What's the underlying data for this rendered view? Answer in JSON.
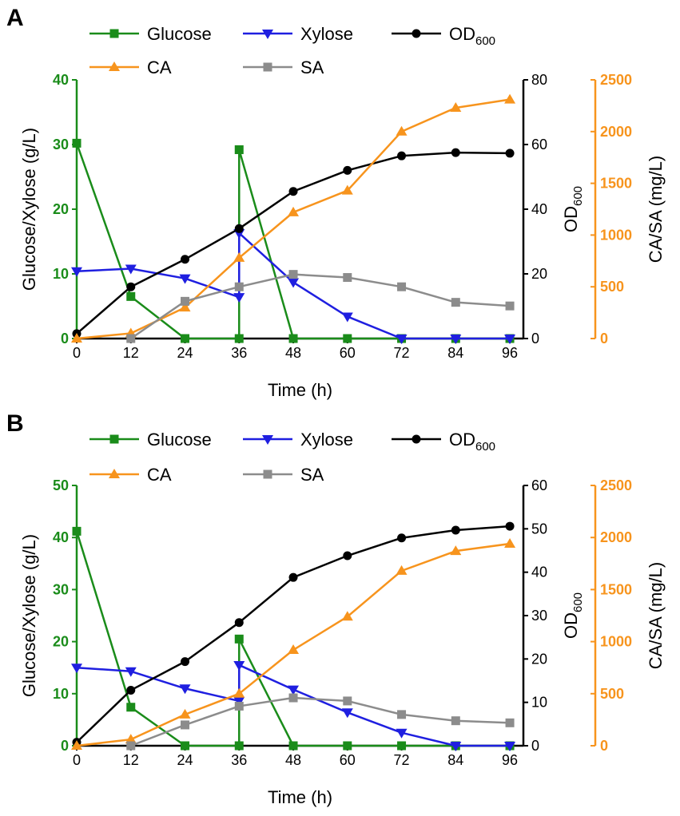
{
  "chart_data": [
    {
      "panel": "A",
      "type": "line",
      "xlabel": "Time (h)",
      "x_ticks": [
        "0",
        "12",
        "24",
        "36",
        "48",
        "60",
        "72",
        "84",
        "96"
      ],
      "xlim": [
        0,
        99
      ],
      "axes": {
        "left": {
          "label": "Glucose/Xylose (g/L)",
          "ylim": [
            0,
            40
          ],
          "ticks": [
            "0",
            "10",
            "20",
            "30",
            "40"
          ],
          "color": "#1a8c1a"
        },
        "right1": {
          "label_main": "OD",
          "label_sub": "600",
          "ylim": [
            0,
            80
          ],
          "ticks": [
            "0",
            "20",
            "40",
            "60",
            "80"
          ],
          "color": "#000000"
        },
        "right2": {
          "label": "CA/SA (mg/L)",
          "ylim": [
            0,
            2500
          ],
          "ticks": [
            "0",
            "500",
            "1000",
            "1500",
            "2000",
            "2500"
          ],
          "color": "#f7941d"
        }
      },
      "series": [
        {
          "name": "Glucose",
          "axis": "left",
          "marker": "square",
          "color": "#1a8c1a",
          "points": [
            [
              0,
              30.2
            ],
            [
              12,
              6.5
            ],
            [
              24,
              0
            ],
            [
              36,
              0
            ],
            [
              36,
              29.2
            ],
            [
              48,
              0
            ],
            [
              60,
              0
            ],
            [
              72,
              0
            ],
            [
              84,
              0
            ],
            [
              96,
              0
            ]
          ]
        },
        {
          "name": "Xylose",
          "axis": "left",
          "marker": "triangle-down",
          "color": "#1f1fe0",
          "points": [
            [
              0,
              10.4
            ],
            [
              12,
              10.8
            ],
            [
              24,
              9.3
            ],
            [
              36,
              6.4
            ],
            [
              36,
              16.3
            ],
            [
              48,
              8.7
            ],
            [
              60,
              3.4
            ],
            [
              72,
              0
            ],
            [
              84,
              0
            ],
            [
              96,
              0
            ]
          ]
        },
        {
          "name": "OD",
          "name_sub": "600",
          "axis": "right1",
          "marker": "circle",
          "color": "#000000",
          "points": [
            [
              0,
              1.5
            ],
            [
              12,
              16
            ],
            [
              24,
              24.5
            ],
            [
              36,
              34
            ],
            [
              48,
              45.5
            ],
            [
              60,
              52
            ],
            [
              72,
              56.5
            ],
            [
              84,
              57.5
            ],
            [
              96,
              57.3
            ]
          ]
        },
        {
          "name": "CA",
          "axis": "right2",
          "marker": "triangle-up",
          "color": "#f7941d",
          "points": [
            [
              0,
              0
            ],
            [
              12,
              50
            ],
            [
              24,
              300
            ],
            [
              36,
              780
            ],
            [
              48,
              1220
            ],
            [
              60,
              1430
            ],
            [
              72,
              2000
            ],
            [
              84,
              2230
            ],
            [
              96,
              2310
            ]
          ]
        },
        {
          "name": "SA",
          "axis": "right2",
          "marker": "square",
          "color": "#8c8c8c",
          "points": [
            [
              12,
              0
            ],
            [
              24,
              360
            ],
            [
              36,
              500
            ],
            [
              48,
              620
            ],
            [
              60,
              590
            ],
            [
              72,
              500
            ],
            [
              84,
              350
            ],
            [
              96,
              315
            ]
          ]
        }
      ]
    },
    {
      "panel": "B",
      "type": "line",
      "xlabel": "Time (h)",
      "x_ticks": [
        "0",
        "12",
        "24",
        "36",
        "48",
        "60",
        "72",
        "84",
        "96"
      ],
      "xlim": [
        0,
        99
      ],
      "axes": {
        "left": {
          "label": "Glucose/Xylose (g/L)",
          "ylim": [
            0,
            50
          ],
          "ticks": [
            "0",
            "10",
            "20",
            "30",
            "40",
            "50"
          ],
          "color": "#1a8c1a"
        },
        "right1": {
          "label_main": "OD",
          "label_sub": "600",
          "ylim": [
            0,
            60
          ],
          "ticks": [
            "0",
            "10",
            "20",
            "30",
            "40",
            "50",
            "60"
          ],
          "color": "#000000"
        },
        "right2": {
          "label": "CA/SA (mg/L)",
          "ylim": [
            0,
            2500
          ],
          "ticks": [
            "0",
            "500",
            "1000",
            "1500",
            "2000",
            "2500"
          ],
          "color": "#f7941d"
        }
      },
      "series": [
        {
          "name": "Glucose",
          "axis": "left",
          "marker": "square",
          "color": "#1a8c1a",
          "points": [
            [
              0,
              41.2
            ],
            [
              12,
              7.4
            ],
            [
              24,
              0
            ],
            [
              36,
              0
            ],
            [
              36,
              20.5
            ],
            [
              48,
              0
            ],
            [
              60,
              0
            ],
            [
              72,
              0
            ],
            [
              84,
              0
            ],
            [
              96,
              0
            ]
          ]
        },
        {
          "name": "Xylose",
          "axis": "left",
          "marker": "triangle-down",
          "color": "#1f1fe0",
          "points": [
            [
              0,
              15
            ],
            [
              12,
              14.3
            ],
            [
              24,
              11
            ],
            [
              36,
              8.6
            ],
            [
              36,
              15.5
            ],
            [
              48,
              10.8
            ],
            [
              60,
              6.4
            ],
            [
              72,
              2.5
            ],
            [
              84,
              0
            ],
            [
              96,
              0
            ]
          ]
        },
        {
          "name": "OD",
          "name_sub": "600",
          "axis": "right1",
          "marker": "circle",
          "color": "#000000",
          "points": [
            [
              0,
              0.8
            ],
            [
              12,
              12.8
            ],
            [
              24,
              19.4
            ],
            [
              36,
              28.4
            ],
            [
              48,
              38.8
            ],
            [
              60,
              43.8
            ],
            [
              72,
              47.9
            ],
            [
              84,
              49.7
            ],
            [
              96,
              50.6
            ]
          ]
        },
        {
          "name": "CA",
          "axis": "right2",
          "marker": "triangle-up",
          "color": "#f7941d",
          "points": [
            [
              0,
              0
            ],
            [
              12,
              60
            ],
            [
              24,
              300
            ],
            [
              36,
              500
            ],
            [
              48,
              920
            ],
            [
              60,
              1240
            ],
            [
              72,
              1680
            ],
            [
              84,
              1870
            ],
            [
              96,
              1940
            ]
          ]
        },
        {
          "name": "SA",
          "axis": "right2",
          "marker": "square",
          "color": "#8c8c8c",
          "points": [
            [
              12,
              0
            ],
            [
              24,
              200
            ],
            [
              36,
              380
            ],
            [
              48,
              460
            ],
            [
              60,
              430
            ],
            [
              72,
              300
            ],
            [
              84,
              240
            ],
            [
              96,
              220
            ]
          ]
        }
      ]
    }
  ]
}
